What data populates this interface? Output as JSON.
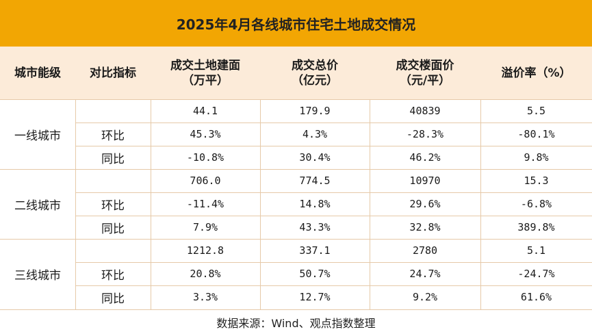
{
  "title": "2025年4月各线城市住宅土地成交情况",
  "headers": {
    "city_tier": "城市能级",
    "metric": "对比指标",
    "area": [
      "成交土地建面",
      "（万平）"
    ],
    "total": [
      "成交总价",
      "（亿元）"
    ],
    "price": [
      "成交楼面价",
      "（元/平）"
    ],
    "premium": "溢价率（%）"
  },
  "groups": [
    {
      "city": "一线城市",
      "rows": [
        {
          "metric": "",
          "area": "44.1",
          "total": "179.9",
          "price": "40839",
          "premium": "5.5"
        },
        {
          "metric": "环比",
          "area": "45.3%",
          "total": "4.3%",
          "price": "-28.3%",
          "premium": "-80.1%"
        },
        {
          "metric": "同比",
          "area": "-10.8%",
          "total": "30.4%",
          "price": "46.2%",
          "premium": "9.8%"
        }
      ]
    },
    {
      "city": "二线城市",
      "rows": [
        {
          "metric": "",
          "area": "706.0",
          "total": "774.5",
          "price": "10970",
          "premium": "15.3"
        },
        {
          "metric": "环比",
          "area": "-11.4%",
          "total": "14.8%",
          "price": "29.6%",
          "premium": "-6.8%"
        },
        {
          "metric": "同比",
          "area": "7.9%",
          "total": "43.3%",
          "price": "32.8%",
          "premium": "389.8%"
        }
      ]
    },
    {
      "city": "三线城市",
      "rows": [
        {
          "metric": "",
          "area": "1212.8",
          "total": "337.1",
          "price": "2780",
          "premium": "5.1"
        },
        {
          "metric": "环比",
          "area": "20.8%",
          "total": "50.7%",
          "price": "24.7%",
          "premium": "-24.7%"
        },
        {
          "metric": "同比",
          "area": "3.3%",
          "total": "12.7%",
          "price": "9.2%",
          "premium": "61.6%"
        }
      ]
    }
  ],
  "footer": "数据来源：Wind、观点指数整理",
  "colors": {
    "title_bg": "#F2A603",
    "header_bg": "#FCEBD9",
    "grid_line": "#E6C9A8"
  }
}
